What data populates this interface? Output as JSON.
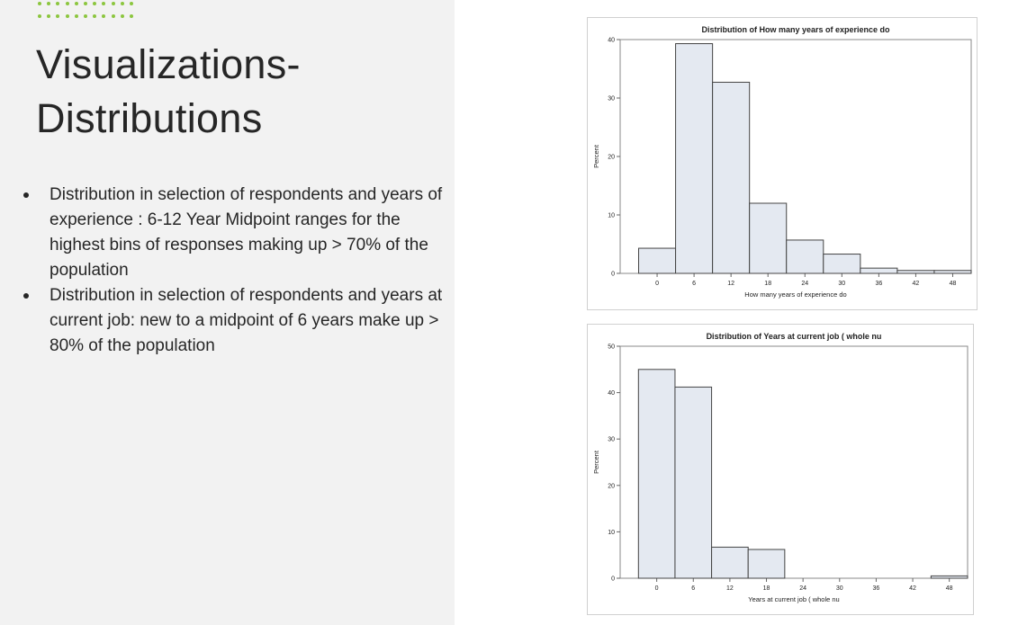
{
  "slide": {
    "title_line1": "Visualizations-",
    "title_line2": "Distributions",
    "bullets": [
      "Distribution in selection of respondents and years of experience : 6-12 Year Midpoint ranges for the highest bins of responses making up > 70% of the population",
      "Distribution in selection of respondents and years at current job: new to a midpoint of 6 years make up > 80% of the population"
    ],
    "accent_color": "#8cc63f",
    "panel_color": "#f2f2f2"
  },
  "chart_data": [
    {
      "type": "bar",
      "title": "Distribution of How many years of experience do",
      "xlabel": "How many years of experience do",
      "ylabel": "Percent",
      "x_ticks": [
        0,
        6,
        12,
        18,
        24,
        30,
        36,
        42,
        48
      ],
      "y_ticks": [
        0,
        10,
        20,
        30,
        40
      ],
      "bin_width": 6,
      "bins": [
        0,
        6,
        12,
        18,
        24,
        30,
        36,
        42,
        48
      ],
      "values": [
        4.3,
        39.3,
        32.7,
        12.0,
        5.7,
        3.3,
        0.9,
        0.5,
        0.5
      ],
      "ylim": [
        0,
        40
      ],
      "bar_fill": "#e4e9f1",
      "bar_stroke": "#444444",
      "grid": false
    },
    {
      "type": "bar",
      "title": "Distribution of Years at current job ( whole nu",
      "xlabel": "Years at current job ( whole nu",
      "ylabel": "Percent",
      "x_ticks": [
        0,
        6,
        12,
        18,
        24,
        30,
        36,
        42,
        48
      ],
      "y_ticks": [
        0,
        10,
        20,
        30,
        40,
        50
      ],
      "bin_width": 6,
      "bins": [
        0,
        6,
        12,
        18,
        48
      ],
      "values": [
        45.0,
        41.2,
        6.7,
        6.2,
        0.5
      ],
      "ylim": [
        0,
        50
      ],
      "bar_fill": "#e4e9f1",
      "bar_stroke": "#444444",
      "grid": false
    }
  ]
}
